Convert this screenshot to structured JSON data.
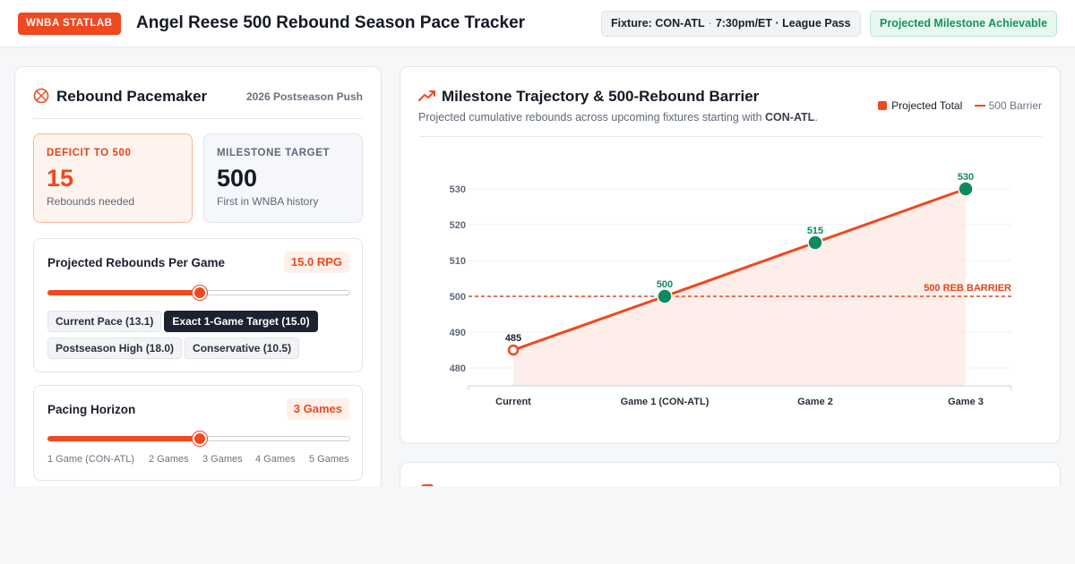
{
  "header": {
    "brand": "WNBA STATLAB",
    "title": "Angel Reese 500 Rebound Season Pace Tracker",
    "fixture_label": "Fixture:",
    "fixture_value": "CON-ATL",
    "fixture_separator": "·",
    "fixture_time": "7:30pm/ET · League Pass",
    "status": "Projected Milestone Achievable"
  },
  "pacemaker": {
    "icon": "basketball-icon",
    "title": "Rebound Pacemaker",
    "subtitle": "2026 Postseason Push",
    "deficit": {
      "label": "DEFICIT TO 500",
      "value": "15",
      "note": "Rebounds needed"
    },
    "target": {
      "label": "MILESTONE TARGET",
      "value": "500",
      "note": "First in WNBA history"
    },
    "rpg": {
      "title": "Projected Rebounds Per Game",
      "value_label": "15.0 RPG",
      "level": 0.5,
      "presets": [
        {
          "label": "Current Pace (13.1)",
          "active": false
        },
        {
          "label": "Exact 1-Game Target (15.0)",
          "active": true
        },
        {
          "label": "Postseason High (18.0)",
          "active": false
        },
        {
          "label": "Conservative (10.5)",
          "active": false
        }
      ]
    },
    "horizon": {
      "title": "Pacing Horizon",
      "value_label": "3 Games",
      "level": 0.5,
      "ticks": [
        "1 Game (CON-ATL)",
        "2 Games",
        "3 Games",
        "4 Games",
        "5 Games"
      ]
    }
  },
  "trajectory": {
    "icon": "trending-up-icon",
    "title": "Milestone Trajectory & 500-Rebound Barrier",
    "subtitle_prefix": "Projected cumulative rebounds across upcoming fixtures starting with ",
    "subtitle_bold": "CON-ATL",
    "subtitle_suffix": ".",
    "legend": [
      "Projected Total",
      "500 Barrier"
    ]
  },
  "chart_data": {
    "type": "line",
    "categories": [
      "Current",
      "Game 1 (CON-ATL)",
      "Game 2",
      "Game 3"
    ],
    "series": [
      {
        "name": "Projected Total",
        "values": [
          485,
          500,
          515,
          530
        ]
      }
    ],
    "data_labels": [
      "485",
      "500",
      "515",
      "530"
    ],
    "threshold": {
      "value": 500,
      "label": "500 REB BARRIER"
    },
    "yticks": [
      480,
      490,
      500,
      510,
      520,
      530
    ],
    "ylim": [
      475,
      530
    ],
    "grid": true,
    "legend_position": "top-right",
    "colors": {
      "line": "#f0481f",
      "milestone": "#0f8a5f",
      "area": "#fde8e2",
      "barrier": "#e0451b"
    }
  },
  "colors": {
    "accent": "#f0481f",
    "success": "#16925e",
    "dark": "#1c2230"
  }
}
